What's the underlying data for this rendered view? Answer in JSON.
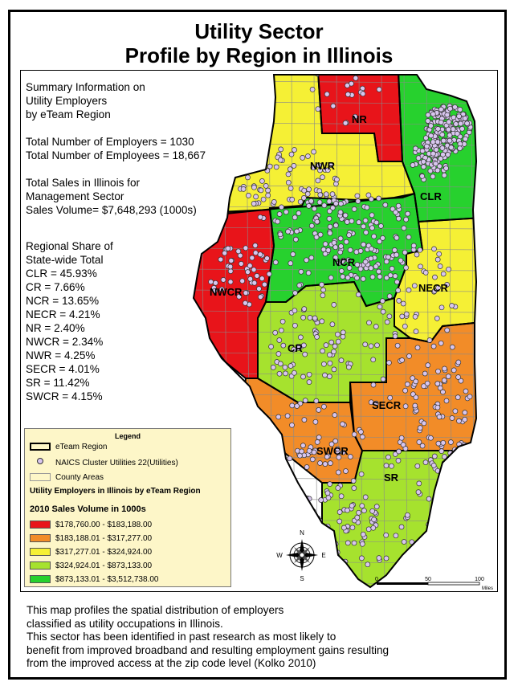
{
  "title": {
    "line1": "Utility Sector",
    "line2": "Profile by Region in Illinois"
  },
  "summary": {
    "heading": [
      "Summary Information on",
      "Utility Employers",
      "by eTeam Region"
    ],
    "employers": "Total Number of Employers = 1030",
    "employees": "Total Number of Employees = 18,667",
    "sales": [
      "Total Sales in Illinois for",
      "Management Sector",
      "Sales Volume= $7,648,293 (1000s)"
    ],
    "share_heading": [
      "Regional Share of",
      "State-wide Total"
    ],
    "shares": [
      "CLR = 45.93%",
      "CR = 7.66%",
      "NCR = 13.65%",
      "NECR = 4.21%",
      "NR = 2.40%",
      "NWCR = 2.34%",
      "NWR = 4.25%",
      "SECR = 4.01%",
      "SR = 11.42%",
      "SWCR = 4.15%"
    ]
  },
  "regions": [
    {
      "code": "NR",
      "class": 1
    },
    {
      "code": "CLR",
      "class": 5
    },
    {
      "code": "NWR",
      "class": 3
    },
    {
      "code": "NWCR",
      "class": 1
    },
    {
      "code": "NCR",
      "class": 5
    },
    {
      "code": "NECR",
      "class": 3
    },
    {
      "code": "CR",
      "class": 4
    },
    {
      "code": "SECR",
      "class": 2
    },
    {
      "code": "SWCR",
      "class": 2
    },
    {
      "code": "SR",
      "class": 4
    }
  ],
  "legend": {
    "title": "Legend",
    "region_label": "eTeam Region",
    "points_label": "NAICS Cluster Utilities 22(Utilities)",
    "county_label": "County Areas",
    "heading1": "Utility Employers in Illinois by eTeam Region",
    "heading2": "2010 Sales Volume in 1000s",
    "classes": [
      {
        "label": "$178,760.00 - $183,188.00",
        "color": "#e8141a"
      },
      {
        "label": "$183,188.01 - $317,277.00",
        "color": "#f28c28"
      },
      {
        "label": "$317,277.01 - $324,924.00",
        "color": "#f5f035"
      },
      {
        "label": "$324,924.01 - $873,133.00",
        "color": "#a6e22e"
      },
      {
        "label": "$873,133.01 - $3,512,738.00",
        "color": "#27d12e"
      }
    ]
  },
  "compass": {
    "n": "N",
    "s": "S",
    "e": "E",
    "w": "W"
  },
  "scalebar": {
    "ticks": [
      "0",
      "50",
      "100"
    ],
    "unit": "Miles"
  },
  "colors": {
    "point_fill": "#d8c6ee",
    "point_stroke": "#333333",
    "county_line": "#8a8a8a",
    "region_line": "#000000"
  },
  "caption": [
    "This map profiles the spatial distribution of employers",
    "classified as utility occupations in Illinois.",
    "This sector has been identified in past research as most likely to",
    "benefit from improved broadband and resulting employment gains resulting",
    "from the improved access at the zip code level (Kolko  2010)"
  ]
}
